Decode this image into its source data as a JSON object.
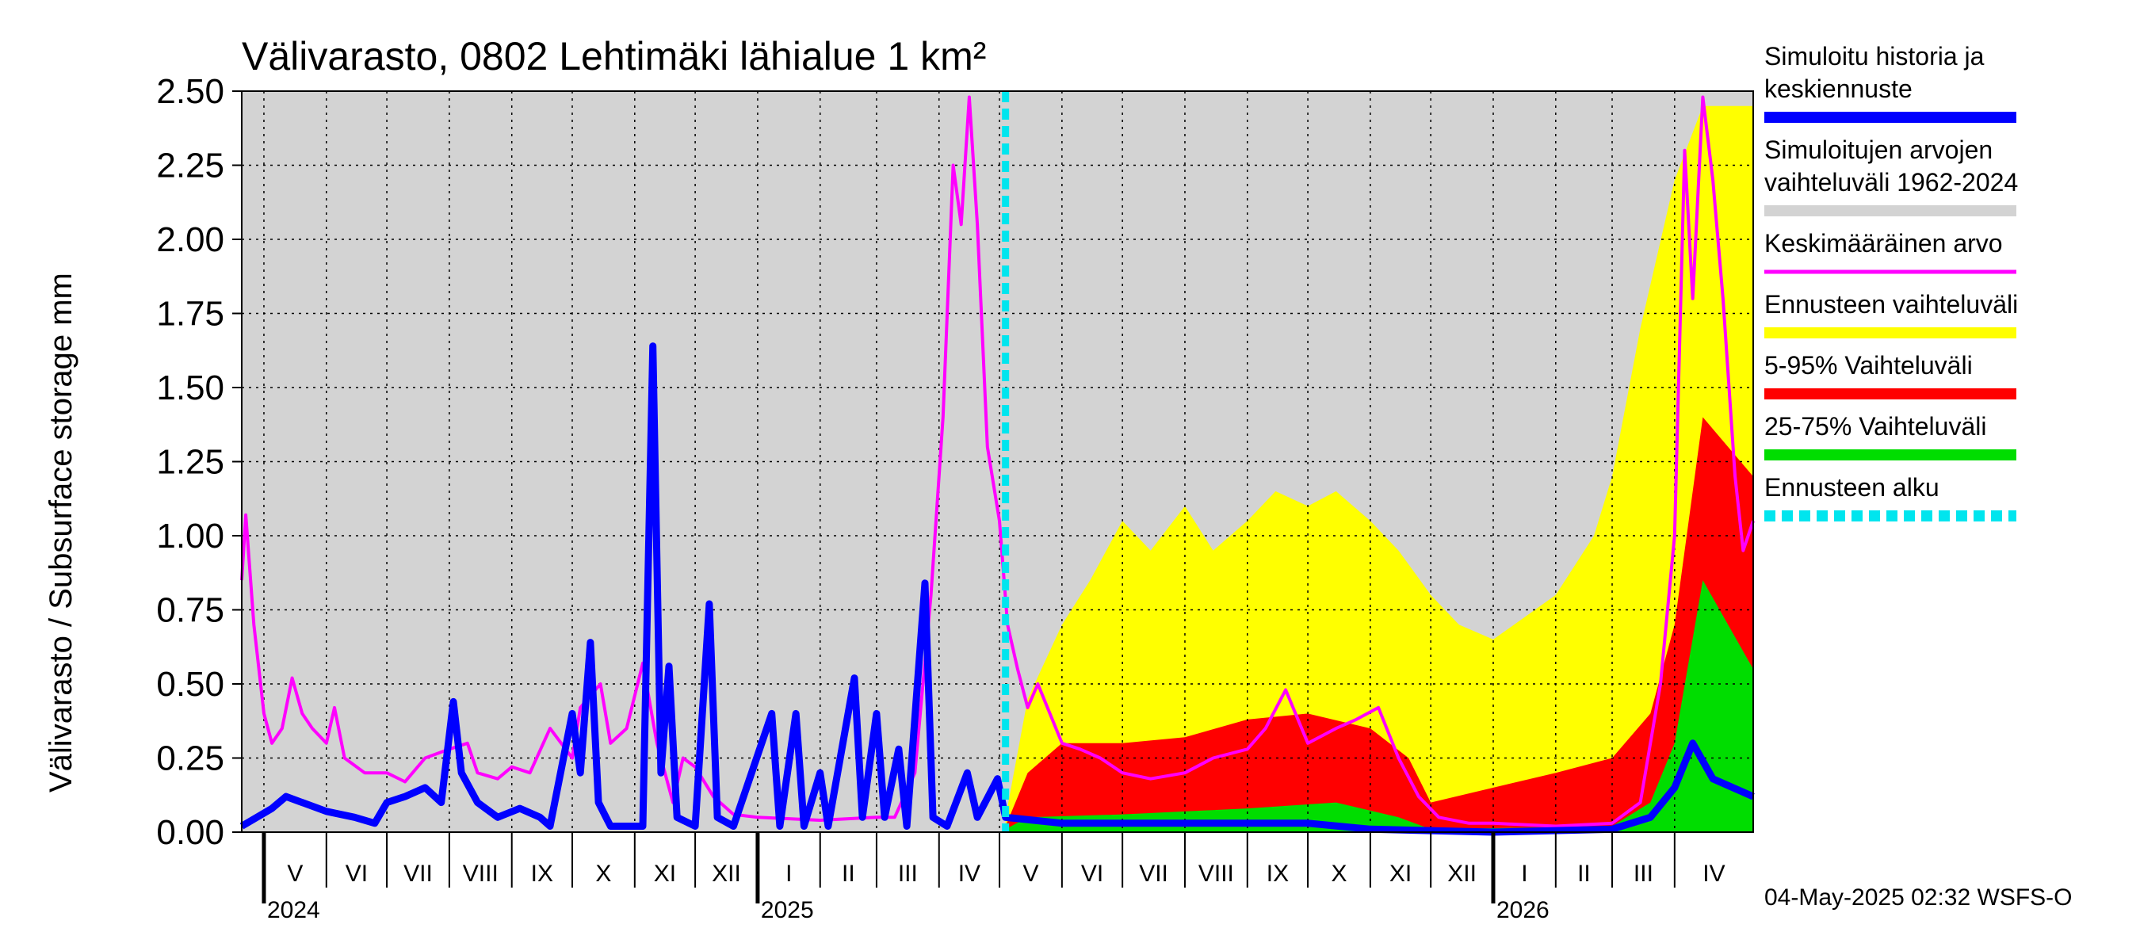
{
  "chart_data": {
    "type": "area",
    "title": "Välivarasto, 0802 Lehtimäki lähialue 1 km²",
    "ylabel": "Välivarasto / Subsurface storage  mm",
    "ylim": [
      0,
      2.5
    ],
    "yticks": [
      "0.00",
      "0.25",
      "0.50",
      "0.75",
      "1.00",
      "1.25",
      "1.50",
      "1.75",
      "2.00",
      "2.25",
      "2.50"
    ],
    "x_start": "2024-04-20",
    "x_end": "2026-05-10",
    "forecast_start": "2025-05-04",
    "months": [
      {
        "label": "V",
        "start": "2024-05-01"
      },
      {
        "label": "VI",
        "start": "2024-06-01"
      },
      {
        "label": "VII",
        "start": "2024-07-01"
      },
      {
        "label": "VIII",
        "start": "2024-08-01"
      },
      {
        "label": "IX",
        "start": "2024-09-01"
      },
      {
        "label": "X",
        "start": "2024-10-01"
      },
      {
        "label": "XI",
        "start": "2024-11-01"
      },
      {
        "label": "XII",
        "start": "2024-12-01"
      },
      {
        "label": "I",
        "start": "2025-01-01"
      },
      {
        "label": "II",
        "start": "2025-02-01"
      },
      {
        "label": "III",
        "start": "2025-03-01"
      },
      {
        "label": "IV",
        "start": "2025-04-01"
      },
      {
        "label": "V",
        "start": "2025-05-01"
      },
      {
        "label": "VI",
        "start": "2025-06-01"
      },
      {
        "label": "VII",
        "start": "2025-07-01"
      },
      {
        "label": "VIII",
        "start": "2025-08-01"
      },
      {
        "label": "IX",
        "start": "2025-09-01"
      },
      {
        "label": "X",
        "start": "2025-10-01"
      },
      {
        "label": "XI",
        "start": "2025-11-01"
      },
      {
        "label": "XII",
        "start": "2025-12-01"
      },
      {
        "label": "I",
        "start": "2026-01-01"
      },
      {
        "label": "II",
        "start": "2026-02-01"
      },
      {
        "label": "III",
        "start": "2026-03-01"
      },
      {
        "label": "IV",
        "start": "2026-04-01"
      }
    ],
    "years": [
      {
        "label": "2024",
        "at": "2024-05-01"
      },
      {
        "label": "2025",
        "at": "2025-01-01"
      },
      {
        "label": "2026",
        "at": "2026-01-01"
      }
    ],
    "legend": [
      {
        "label_lines": [
          "Simuloitu historia ja",
          "keskiennuste"
        ],
        "color": "#0000ff",
        "style": "solid"
      },
      {
        "label_lines": [
          "Simuloitujen arvojen",
          "vaihteluväli 1962-2024"
        ],
        "color": "#d3d3d3",
        "style": "solid"
      },
      {
        "label_lines": [
          "Keskimääräinen arvo"
        ],
        "color": "#ff00ff",
        "style": "thin"
      },
      {
        "label_lines": [
          "Ennusteen vaihteluväli"
        ],
        "color": "#ffff00",
        "style": "solid"
      },
      {
        "label_lines": [
          "5-95% Vaihteluväli"
        ],
        "color": "#ff0000",
        "style": "solid"
      },
      {
        "label_lines": [
          "25-75% Vaihteluväli"
        ],
        "color": "#00dd00",
        "style": "solid"
      },
      {
        "label_lines": [
          "Ennusteen alku"
        ],
        "color": "#00e5ee",
        "style": "dashed"
      }
    ],
    "series": [
      {
        "name": "Keskimääräinen arvo",
        "color": "#ff00ff",
        "points": [
          [
            "2024-04-20",
            0.85
          ],
          [
            "2024-04-22",
            1.07
          ],
          [
            "2024-04-26",
            0.7
          ],
          [
            "2024-05-01",
            0.4
          ],
          [
            "2024-05-05",
            0.3
          ],
          [
            "2024-05-10",
            0.35
          ],
          [
            "2024-05-15",
            0.52
          ],
          [
            "2024-05-20",
            0.4
          ],
          [
            "2024-05-25",
            0.35
          ],
          [
            "2024-06-01",
            0.3
          ],
          [
            "2024-06-05",
            0.42
          ],
          [
            "2024-06-10",
            0.25
          ],
          [
            "2024-06-20",
            0.2
          ],
          [
            "2024-07-01",
            0.2
          ],
          [
            "2024-07-10",
            0.17
          ],
          [
            "2024-07-20",
            0.25
          ],
          [
            "2024-08-01",
            0.28
          ],
          [
            "2024-08-10",
            0.3
          ],
          [
            "2024-08-15",
            0.2
          ],
          [
            "2024-08-25",
            0.18
          ],
          [
            "2024-09-01",
            0.22
          ],
          [
            "2024-09-10",
            0.2
          ],
          [
            "2024-09-20",
            0.35
          ],
          [
            "2024-10-01",
            0.25
          ],
          [
            "2024-10-05",
            0.42
          ],
          [
            "2024-10-15",
            0.5
          ],
          [
            "2024-10-20",
            0.3
          ],
          [
            "2024-10-28",
            0.35
          ],
          [
            "2024-11-05",
            0.57
          ],
          [
            "2024-11-12",
            0.3
          ],
          [
            "2024-11-20",
            0.1
          ],
          [
            "2024-11-25",
            0.25
          ],
          [
            "2024-12-01",
            0.22
          ],
          [
            "2024-12-10",
            0.12
          ],
          [
            "2024-12-20",
            0.06
          ],
          [
            "2025-01-01",
            0.05
          ],
          [
            "2025-02-01",
            0.04
          ],
          [
            "2025-03-01",
            0.05
          ],
          [
            "2025-03-10",
            0.05
          ],
          [
            "2025-03-20",
            0.2
          ],
          [
            "2025-03-28",
            0.8
          ],
          [
            "2025-04-03",
            1.4
          ],
          [
            "2025-04-08",
            2.25
          ],
          [
            "2025-04-12",
            2.05
          ],
          [
            "2025-04-16",
            2.48
          ],
          [
            "2025-04-20",
            2.05
          ],
          [
            "2025-04-25",
            1.3
          ],
          [
            "2025-05-01",
            1.05
          ],
          [
            "2025-05-05",
            0.7
          ],
          [
            "2025-05-10",
            0.55
          ],
          [
            "2025-05-15",
            0.42
          ],
          [
            "2025-05-20",
            0.5
          ],
          [
            "2025-06-01",
            0.3
          ],
          [
            "2025-06-10",
            0.28
          ],
          [
            "2025-06-20",
            0.25
          ],
          [
            "2025-07-01",
            0.2
          ],
          [
            "2025-07-15",
            0.18
          ],
          [
            "2025-08-01",
            0.2
          ],
          [
            "2025-08-15",
            0.25
          ],
          [
            "2025-09-01",
            0.28
          ],
          [
            "2025-09-10",
            0.35
          ],
          [
            "2025-09-20",
            0.48
          ],
          [
            "2025-10-01",
            0.3
          ],
          [
            "2025-10-15",
            0.35
          ],
          [
            "2025-10-25",
            0.38
          ],
          [
            "2025-11-05",
            0.42
          ],
          [
            "2025-11-15",
            0.25
          ],
          [
            "2025-11-25",
            0.12
          ],
          [
            "2025-12-05",
            0.05
          ],
          [
            "2025-12-20",
            0.03
          ],
          [
            "2026-01-01",
            0.03
          ],
          [
            "2026-02-01",
            0.02
          ],
          [
            "2026-03-01",
            0.03
          ],
          [
            "2026-03-15",
            0.1
          ],
          [
            "2026-03-25",
            0.5
          ],
          [
            "2026-04-01",
            1.0
          ],
          [
            "2026-04-06",
            2.3
          ],
          [
            "2026-04-10",
            1.8
          ],
          [
            "2026-04-15",
            2.48
          ],
          [
            "2026-04-20",
            2.2
          ],
          [
            "2026-04-25",
            1.8
          ],
          [
            "2026-05-01",
            1.2
          ],
          [
            "2026-05-05",
            0.95
          ],
          [
            "2026-05-10",
            1.05
          ]
        ]
      },
      {
        "name": "Simuloitu historia ja keskiennuste",
        "color": "#0000ff",
        "points": [
          [
            "2024-04-20",
            0.02
          ],
          [
            "2024-05-05",
            0.08
          ],
          [
            "2024-05-12",
            0.12
          ],
          [
            "2024-05-20",
            0.1
          ],
          [
            "2024-06-01",
            0.07
          ],
          [
            "2024-06-15",
            0.05
          ],
          [
            "2024-06-25",
            0.03
          ],
          [
            "2024-07-01",
            0.1
          ],
          [
            "2024-07-10",
            0.12
          ],
          [
            "2024-07-20",
            0.15
          ],
          [
            "2024-07-28",
            0.1
          ],
          [
            "2024-08-03",
            0.44
          ],
          [
            "2024-08-07",
            0.2
          ],
          [
            "2024-08-15",
            0.1
          ],
          [
            "2024-08-25",
            0.05
          ],
          [
            "2024-09-05",
            0.08
          ],
          [
            "2024-09-15",
            0.05
          ],
          [
            "2024-09-20",
            0.02
          ],
          [
            "2024-10-01",
            0.4
          ],
          [
            "2024-10-05",
            0.2
          ],
          [
            "2024-10-10",
            0.64
          ],
          [
            "2024-10-14",
            0.1
          ],
          [
            "2024-10-20",
            0.02
          ],
          [
            "2024-11-05",
            0.02
          ],
          [
            "2024-11-10",
            1.64
          ],
          [
            "2024-11-14",
            0.2
          ],
          [
            "2024-11-18",
            0.56
          ],
          [
            "2024-11-22",
            0.05
          ],
          [
            "2024-12-01",
            0.02
          ],
          [
            "2024-12-08",
            0.77
          ],
          [
            "2024-12-12",
            0.05
          ],
          [
            "2024-12-20",
            0.02
          ],
          [
            "2025-01-08",
            0.4
          ],
          [
            "2025-01-12",
            0.02
          ],
          [
            "2025-01-20",
            0.4
          ],
          [
            "2025-01-24",
            0.02
          ],
          [
            "2025-02-01",
            0.2
          ],
          [
            "2025-02-05",
            0.02
          ],
          [
            "2025-02-18",
            0.52
          ],
          [
            "2025-02-22",
            0.05
          ],
          [
            "2025-03-01",
            0.4
          ],
          [
            "2025-03-05",
            0.05
          ],
          [
            "2025-03-12",
            0.28
          ],
          [
            "2025-03-16",
            0.02
          ],
          [
            "2025-03-25",
            0.84
          ],
          [
            "2025-03-29",
            0.05
          ],
          [
            "2025-04-05",
            0.02
          ],
          [
            "2025-04-15",
            0.2
          ],
          [
            "2025-04-20",
            0.05
          ],
          [
            "2025-04-30",
            0.18
          ],
          [
            "2025-05-04",
            0.05
          ],
          [
            "2025-06-01",
            0.03
          ],
          [
            "2025-08-01",
            0.03
          ],
          [
            "2025-10-01",
            0.03
          ],
          [
            "2025-11-01",
            0.01
          ],
          [
            "2026-01-01",
            0.0
          ],
          [
            "2026-03-01",
            0.01
          ],
          [
            "2026-03-20",
            0.05
          ],
          [
            "2026-04-01",
            0.15
          ],
          [
            "2026-04-10",
            0.3
          ],
          [
            "2026-04-20",
            0.18
          ],
          [
            "2026-05-10",
            0.12
          ]
        ]
      }
    ],
    "bands": [
      {
        "name": "Simuloitujen arvojen vaihteluväli 1962-2024",
        "color": "#d3d3d3",
        "from": "2024-04-20",
        "to": "2026-05-10",
        "lower": 0.0,
        "upper": 2.5
      },
      {
        "name": "Ennusteen vaihteluväli",
        "color": "#ffff00",
        "upper": [
          [
            "2025-05-04",
            0.05
          ],
          [
            "2025-05-15",
            0.45
          ],
          [
            "2025-06-01",
            0.7
          ],
          [
            "2025-06-15",
            0.85
          ],
          [
            "2025-07-01",
            1.05
          ],
          [
            "2025-07-15",
            0.95
          ],
          [
            "2025-08-01",
            1.1
          ],
          [
            "2025-08-15",
            0.95
          ],
          [
            "2025-09-01",
            1.05
          ],
          [
            "2025-09-15",
            1.15
          ],
          [
            "2025-10-01",
            1.1
          ],
          [
            "2025-10-15",
            1.15
          ],
          [
            "2025-11-01",
            1.05
          ],
          [
            "2025-11-15",
            0.95
          ],
          [
            "2025-12-01",
            0.8
          ],
          [
            "2025-12-15",
            0.7
          ],
          [
            "2026-01-01",
            0.65
          ],
          [
            "2026-02-01",
            0.8
          ],
          [
            "2026-02-20",
            1.0
          ],
          [
            "2026-03-01",
            1.2
          ],
          [
            "2026-03-15",
            1.7
          ],
          [
            "2026-04-01",
            2.2
          ],
          [
            "2026-04-15",
            2.45
          ],
          [
            "2026-05-10",
            2.45
          ]
        ]
      },
      {
        "name": "5-95% Vaihteluväli",
        "color": "#ff0000",
        "upper": [
          [
            "2025-05-04",
            0.02
          ],
          [
            "2025-05-15",
            0.2
          ],
          [
            "2025-06-01",
            0.3
          ],
          [
            "2025-07-01",
            0.3
          ],
          [
            "2025-08-01",
            0.32
          ],
          [
            "2025-09-01",
            0.38
          ],
          [
            "2025-10-01",
            0.4
          ],
          [
            "2025-11-01",
            0.35
          ],
          [
            "2025-11-20",
            0.25
          ],
          [
            "2025-12-01",
            0.1
          ],
          [
            "2026-01-01",
            0.15
          ],
          [
            "2026-02-01",
            0.2
          ],
          [
            "2026-03-01",
            0.25
          ],
          [
            "2026-03-20",
            0.4
          ],
          [
            "2026-04-01",
            0.7
          ],
          [
            "2026-04-15",
            1.4
          ],
          [
            "2026-05-10",
            1.2
          ]
        ]
      },
      {
        "name": "25-75% Vaihteluväli",
        "color": "#00dd00",
        "upper": [
          [
            "2025-05-04",
            0.01
          ],
          [
            "2025-05-15",
            0.05
          ],
          [
            "2025-07-01",
            0.06
          ],
          [
            "2025-09-01",
            0.08
          ],
          [
            "2025-10-15",
            0.1
          ],
          [
            "2025-11-15",
            0.05
          ],
          [
            "2025-12-01",
            0.01
          ],
          [
            "2026-03-01",
            0.02
          ],
          [
            "2026-03-20",
            0.1
          ],
          [
            "2026-04-01",
            0.3
          ],
          [
            "2026-04-15",
            0.85
          ],
          [
            "2026-05-10",
            0.55
          ]
        ]
      }
    ],
    "grid": true
  },
  "footer": "04-May-2025 02:32 WSFS-O"
}
